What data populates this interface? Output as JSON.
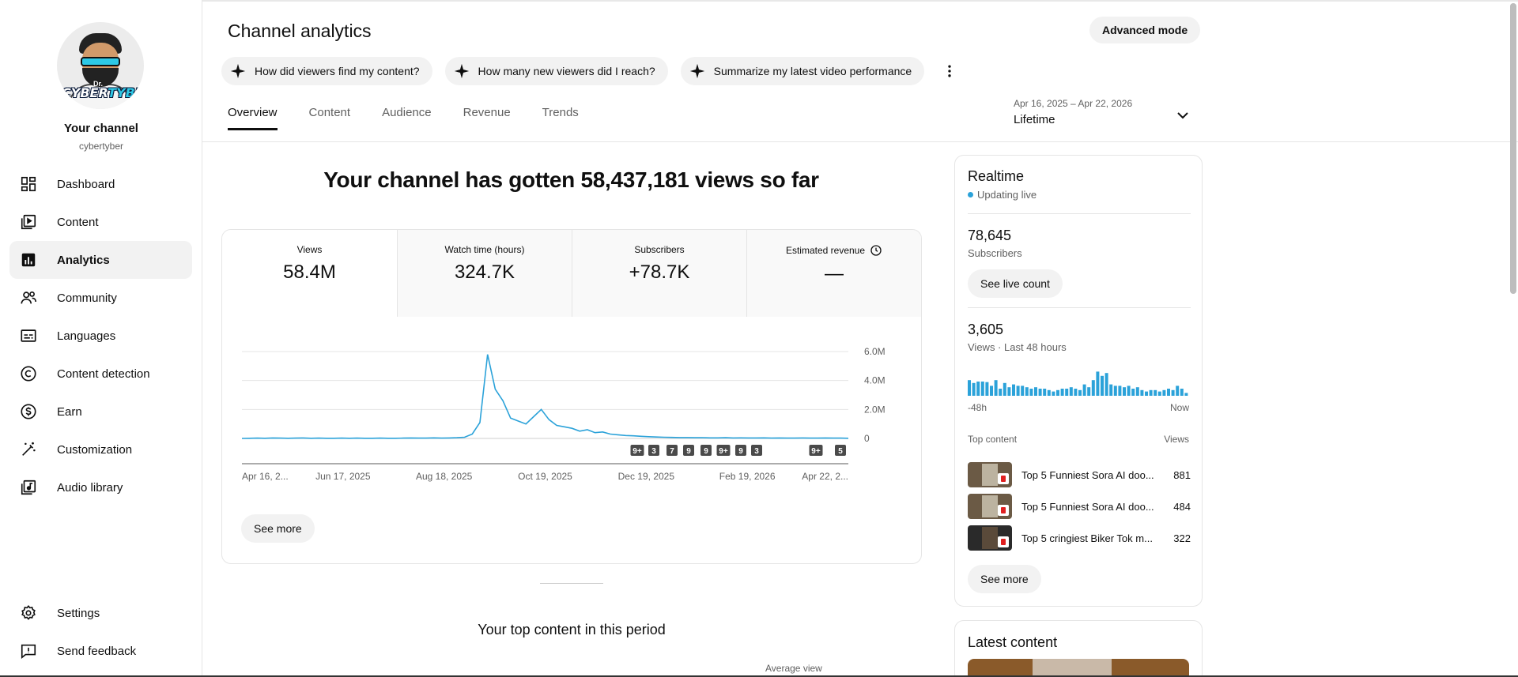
{
  "sidebar": {
    "channel_title": "Your channel",
    "channel_handle": "cybertyber",
    "avatar_text_small": "Dr.",
    "avatar_text_a": "CYBER",
    "avatar_text_b": "TYBER",
    "items": [
      {
        "label": "Dashboard",
        "icon": "dashboard-icon"
      },
      {
        "label": "Content",
        "icon": "content-icon"
      },
      {
        "label": "Analytics",
        "icon": "analytics-icon",
        "active": true
      },
      {
        "label": "Community",
        "icon": "community-icon"
      },
      {
        "label": "Languages",
        "icon": "languages-icon"
      },
      {
        "label": "Content detection",
        "icon": "copyright-icon"
      },
      {
        "label": "Earn",
        "icon": "dollar-icon"
      },
      {
        "label": "Customization",
        "icon": "magic-wand-icon"
      },
      {
        "label": "Audio library",
        "icon": "audio-library-icon"
      }
    ],
    "bottom_items": [
      {
        "label": "Settings",
        "icon": "gear-icon"
      },
      {
        "label": "Send feedback",
        "icon": "feedback-icon"
      }
    ]
  },
  "header": {
    "title": "Channel analytics",
    "advanced_mode": "Advanced mode",
    "chips": [
      "How did viewers find my content?",
      "How many new viewers did I reach?",
      "Summarize my latest video performance"
    ],
    "tabs": [
      "Overview",
      "Content",
      "Audience",
      "Revenue",
      "Trends"
    ],
    "active_tab": "Overview",
    "date_range": "Apr 16, 2025 – Apr 22, 2026",
    "period": "Lifetime"
  },
  "overview": {
    "headline": "Your channel has gotten 58,437,181 views so far",
    "metrics": [
      {
        "label": "Views",
        "value": "58.4M"
      },
      {
        "label": "Watch time (hours)",
        "value": "324.7K"
      },
      {
        "label": "Subscribers",
        "value": "+78.7K"
      },
      {
        "label": "Estimated revenue",
        "value": "—"
      }
    ],
    "see_more": "See more",
    "top_content_title": "Your top content in this period",
    "avg_view_label": "Average view"
  },
  "chart_data": {
    "type": "line",
    "series": [
      {
        "values": [
          0.0,
          0.01,
          0.02,
          0.01,
          0.03,
          0.02,
          0.01,
          0.02,
          0.03,
          0.01,
          0.02,
          0.01,
          0.01,
          0.02,
          0.01,
          0.02,
          0.01,
          0.01,
          0.02,
          0.01,
          0.01,
          0.02,
          0.03,
          0.02,
          0.02,
          0.04,
          0.02,
          0.03,
          0.05,
          0.08,
          0.3,
          1.1,
          5.8,
          3.4,
          2.6,
          1.4,
          1.2,
          1.0,
          1.5,
          2.0,
          1.3,
          0.9,
          0.8,
          0.7,
          0.5,
          0.6,
          0.4,
          0.45,
          0.3,
          0.25,
          0.2,
          0.18,
          0.15,
          0.12,
          0.1,
          0.08,
          0.07,
          0.06,
          0.06,
          0.05,
          0.05,
          0.04,
          0.04,
          0.05,
          0.03,
          0.04,
          0.03,
          0.03,
          0.04,
          0.02,
          0.03,
          0.02,
          0.02,
          0.03,
          0.02,
          0.02,
          0.03,
          0.02,
          0.02,
          0.01
        ]
      }
    ],
    "x_tick_labels": [
      "Apr 16, 2...",
      "Jun 17, 2025",
      "Aug 18, 2025",
      "Oct 19, 2025",
      "Dec 19, 2025",
      "Feb 19, 2026",
      "Apr 22, 2..."
    ],
    "y_tick_labels": [
      "6.0M",
      "4.0M",
      "2.0M",
      "0"
    ],
    "ylim": [
      0,
      6.0
    ],
    "y_unit": "M",
    "grid": true,
    "annotation_markers": [
      "9+",
      "3",
      "7",
      "9",
      "9",
      "9+",
      "9",
      "3",
      "9+",
      "5"
    ]
  },
  "realtime": {
    "title": "Realtime",
    "status": "Updating live",
    "subscribers_value": "78,645",
    "subscribers_label": "Subscribers",
    "see_live_count": "See live count",
    "views_value": "3,605",
    "views_label": "Views · Last 48 hours",
    "bars": [
      0.55,
      0.45,
      0.5,
      0.5,
      0.48,
      0.35,
      0.55,
      0.25,
      0.45,
      0.3,
      0.4,
      0.35,
      0.35,
      0.3,
      0.25,
      0.3,
      0.25,
      0.25,
      0.2,
      0.15,
      0.2,
      0.25,
      0.25,
      0.3,
      0.25,
      0.2,
      0.4,
      0.3,
      0.55,
      0.85,
      0.7,
      0.8,
      0.4,
      0.35,
      0.35,
      0.3,
      0.35,
      0.25,
      0.3,
      0.2,
      0.15,
      0.2,
      0.2,
      0.15,
      0.2,
      0.25,
      0.2,
      0.35,
      0.25,
      0.1
    ],
    "axis_start": "-48h",
    "axis_end": "Now",
    "top_content_label": "Top content",
    "top_views_label": "Views",
    "top_content": [
      {
        "title": "Top 5 Funniest Sora AI doo...",
        "views": "881"
      },
      {
        "title": "Top 5 Funniest Sora AI doo...",
        "views": "484"
      },
      {
        "title": "Top 5 cringiest Biker Tok m...",
        "views": "322"
      }
    ],
    "see_more": "See more"
  },
  "latest": {
    "title": "Latest content"
  },
  "colors": {
    "accent": "#2ba2d9",
    "chip_bg": "#f2f2f2",
    "text": "#0f0f0f",
    "secondary": "#606060"
  }
}
